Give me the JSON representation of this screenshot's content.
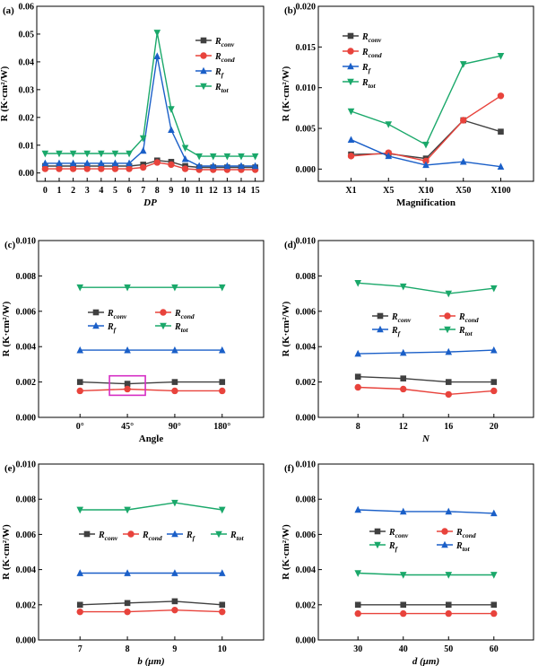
{
  "colors": {
    "conv": "#404040",
    "cond": "#e8433c",
    "f": "#1a5fc8",
    "tot": "#1aa86a",
    "highlight": "#d62fc4"
  },
  "marker_shapes": {
    "conv": "square",
    "cond": "circle",
    "f": "triangle-up",
    "tot": "triangle-down"
  },
  "chart_data": [
    {
      "panel_label": "(a)",
      "type": "line",
      "ylabel": "R (K·cm²/W)",
      "xlabel": "DP",
      "x_italic": true,
      "categories": [
        "0",
        "1",
        "2",
        "3",
        "4",
        "5",
        "6",
        "7",
        "8",
        "9",
        "10",
        "11",
        "12",
        "13",
        "14",
        "15"
      ],
      "yticks": [
        "0.00",
        "0.01",
        "0.02",
        "0.03",
        "0.04",
        "0.05",
        "0.06"
      ],
      "ylim": [
        -0.003,
        0.06
      ],
      "legend_position": "upper-right",
      "legend_layout": "column",
      "series": [
        {
          "key": "conv",
          "name": "R",
          "sub": "conv",
          "values": [
            0.0025,
            0.0025,
            0.0025,
            0.0025,
            0.0025,
            0.0025,
            0.0025,
            0.003,
            0.0045,
            0.004,
            0.0025,
            0.002,
            0.002,
            0.002,
            0.002,
            0.002
          ]
        },
        {
          "key": "cond",
          "name": "R",
          "sub": "cond",
          "values": [
            0.0015,
            0.0015,
            0.0015,
            0.0015,
            0.0015,
            0.0015,
            0.0015,
            0.002,
            0.0038,
            0.003,
            0.0015,
            0.0012,
            0.0012,
            0.0012,
            0.0012,
            0.0012
          ]
        },
        {
          "key": "f",
          "name": "R",
          "sub": "f",
          "values": [
            0.0035,
            0.0035,
            0.0035,
            0.0035,
            0.0035,
            0.0035,
            0.0035,
            0.008,
            0.042,
            0.0155,
            0.005,
            0.0025,
            0.0025,
            0.0025,
            0.0025,
            0.0025
          ]
        },
        {
          "key": "tot",
          "name": "R",
          "sub": "tot",
          "values": [
            0.007,
            0.007,
            0.007,
            0.007,
            0.007,
            0.007,
            0.007,
            0.0125,
            0.0505,
            0.023,
            0.009,
            0.006,
            0.006,
            0.006,
            0.006,
            0.006
          ]
        }
      ]
    },
    {
      "panel_label": "(b)",
      "type": "line",
      "ylabel": "R (K·cm²/W)",
      "xlabel": "Magnification",
      "x_italic": false,
      "categories": [
        "X1",
        "X5",
        "X10",
        "X50",
        "X100"
      ],
      "yticks": [
        "0.000",
        "0.005",
        "0.010",
        "0.015",
        "0.020"
      ],
      "ylim": [
        -0.0015,
        0.02
      ],
      "legend_position": "upper-left",
      "legend_layout": "column",
      "series": [
        {
          "key": "conv",
          "name": "R",
          "sub": "conv",
          "values": [
            0.0018,
            0.0019,
            0.0013,
            0.006,
            0.0046
          ]
        },
        {
          "key": "cond",
          "name": "R",
          "sub": "cond",
          "values": [
            0.0016,
            0.002,
            0.001,
            0.006,
            0.009
          ]
        },
        {
          "key": "f",
          "name": "R",
          "sub": "f",
          "values": [
            0.0036,
            0.0016,
            0.0005,
            0.0009,
            0.0003
          ]
        },
        {
          "key": "tot",
          "name": "R",
          "sub": "tot",
          "values": [
            0.0071,
            0.0055,
            0.003,
            0.0129,
            0.0139
          ]
        }
      ]
    },
    {
      "panel_label": "(c)",
      "type": "line",
      "ylabel": "R (K·cm²/W)",
      "xlabel": "Angle",
      "x_italic": false,
      "categories": [
        "0°",
        "45°",
        "90°",
        "180°"
      ],
      "yticks": [
        "0.000",
        "0.002",
        "0.004",
        "0.006",
        "0.008",
        "0.010"
      ],
      "ylim": [
        0,
        0.01
      ],
      "legend_position": "middle",
      "legend_layout": "grid",
      "highlight_category": "45°",
      "series": [
        {
          "key": "conv",
          "name": "R",
          "sub": "conv",
          "values": [
            0.002,
            0.0019,
            0.002,
            0.002
          ]
        },
        {
          "key": "cond",
          "name": "R",
          "sub": "cond",
          "values": [
            0.0015,
            0.0016,
            0.0015,
            0.0015
          ]
        },
        {
          "key": "f",
          "name": "R",
          "sub": "f",
          "values": [
            0.0038,
            0.0038,
            0.0038,
            0.0038
          ]
        },
        {
          "key": "tot",
          "name": "R",
          "sub": "tot",
          "values": [
            0.00735,
            0.00735,
            0.00735,
            0.00735
          ]
        }
      ]
    },
    {
      "panel_label": "(d)",
      "type": "line",
      "ylabel": "R (K·cm²/W)",
      "xlabel": "N",
      "x_italic": true,
      "categories": [
        "8",
        "12",
        "16",
        "20"
      ],
      "yticks": [
        "0.000",
        "0.002",
        "0.004",
        "0.006",
        "0.008",
        "0.010"
      ],
      "ylim": [
        0,
        0.01
      ],
      "legend_position": "middle",
      "legend_layout": "grid",
      "series": [
        {
          "key": "conv",
          "name": "R",
          "sub": "conv",
          "values": [
            0.0023,
            0.0022,
            0.002,
            0.002
          ]
        },
        {
          "key": "cond",
          "name": "R",
          "sub": "cond",
          "values": [
            0.0017,
            0.0016,
            0.0013,
            0.0015
          ]
        },
        {
          "key": "f",
          "name": "R",
          "sub": "f",
          "values": [
            0.0036,
            0.00365,
            0.0037,
            0.0038
          ]
        },
        {
          "key": "tot",
          "name": "R",
          "sub": "tot",
          "values": [
            0.0076,
            0.0074,
            0.007,
            0.0073
          ]
        }
      ]
    },
    {
      "panel_label": "(e)",
      "type": "line",
      "ylabel": "R (K·cm²/W)",
      "xlabel": "b (μm)",
      "x_italic": true,
      "categories": [
        "7",
        "8",
        "9",
        "10"
      ],
      "yticks": [
        "0.000",
        "0.002",
        "0.004",
        "0.006",
        "0.008",
        "0.010"
      ],
      "ylim": [
        0,
        0.01
      ],
      "legend_position": "middle",
      "legend_layout": "row",
      "series": [
        {
          "key": "conv",
          "name": "R",
          "sub": "conv",
          "values": [
            0.002,
            0.0021,
            0.0022,
            0.002
          ]
        },
        {
          "key": "cond",
          "name": "R",
          "sub": "cond",
          "values": [
            0.0016,
            0.0016,
            0.0017,
            0.0016
          ]
        },
        {
          "key": "f",
          "name": "R",
          "sub": "f",
          "values": [
            0.0038,
            0.0038,
            0.0038,
            0.0038
          ]
        },
        {
          "key": "tot",
          "name": "R",
          "sub": "tot",
          "values": [
            0.0074,
            0.0074,
            0.0078,
            0.0074
          ]
        }
      ]
    },
    {
      "panel_label": "(f)",
      "type": "line",
      "ylabel": "R (K·cm²/W)",
      "xlabel": "d (μm)",
      "x_italic": true,
      "categories": [
        "30",
        "40",
        "50",
        "60"
      ],
      "yticks": [
        "0.000",
        "0.002",
        "0.004",
        "0.006",
        "0.008",
        "0.010"
      ],
      "ylim": [
        0,
        0.01
      ],
      "legend_position": "middle",
      "legend_layout": "grid",
      "series": [
        {
          "key": "conv",
          "name": "R",
          "sub": "conv",
          "values": [
            0.002,
            0.002,
            0.002,
            0.002
          ]
        },
        {
          "key": "cond",
          "name": "R",
          "sub": "cond",
          "values": [
            0.0015,
            0.0015,
            0.0015,
            0.0015
          ]
        },
        {
          "key": "tot",
          "name": "R",
          "sub": "f",
          "values": [
            0.0038,
            0.0037,
            0.0037,
            0.0037
          ]
        },
        {
          "key": "f",
          "name": "R",
          "sub": "tot",
          "values": [
            0.0074,
            0.0073,
            0.0073,
            0.0072
          ]
        }
      ]
    }
  ]
}
